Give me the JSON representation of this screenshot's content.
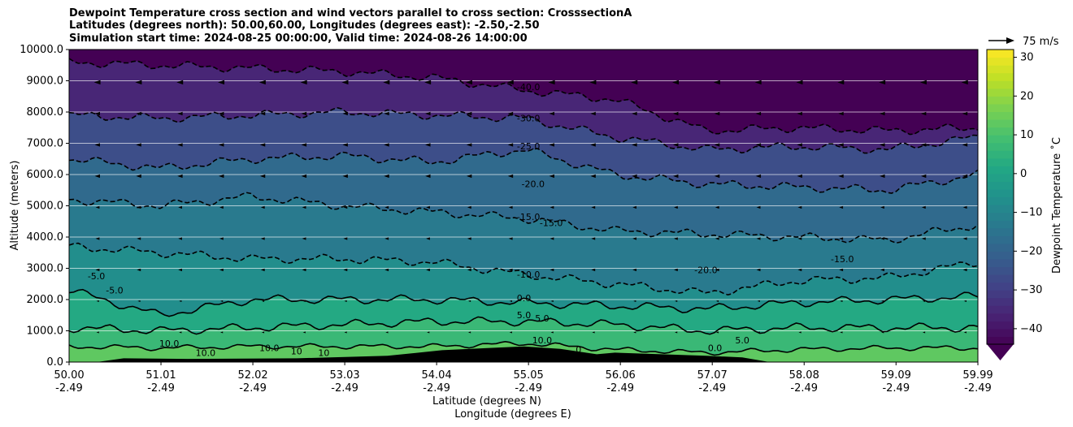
{
  "chart_data": {
    "type": "heatmap",
    "title_lines": [
      "Dewpoint Temperature cross section and wind vectors parallel to cross section: CrosssectionA",
      "Latitudes (degrees north): 50.00,60.00, Longitudes (degrees east): -2.50,-2.50",
      "Simulation start time: 2024-08-25 00:00:00, Valid time: 2024-08-26 14:00:00"
    ],
    "xlabel_lat": "Latitude (degrees N)",
    "xlabel_lon": "Longitude (degrees E)",
    "ylabel": "Altitude (meters)",
    "xlim": [
      50.0,
      59.99
    ],
    "ylim": [
      0,
      10000
    ],
    "grid": "horizontal",
    "x_ticks": [
      {
        "lat": "50.00",
        "lon": "-2.49"
      },
      {
        "lat": "51.01",
        "lon": "-2.49"
      },
      {
        "lat": "52.02",
        "lon": "-2.49"
      },
      {
        "lat": "53.03",
        "lon": "-2.49"
      },
      {
        "lat": "54.04",
        "lon": "-2.49"
      },
      {
        "lat": "55.05",
        "lon": "-2.49"
      },
      {
        "lat": "56.06",
        "lon": "-2.49"
      },
      {
        "lat": "57.07",
        "lon": "-2.49"
      },
      {
        "lat": "58.08",
        "lon": "-2.49"
      },
      {
        "lat": "59.09",
        "lon": "-2.49"
      },
      {
        "lat": "59.99",
        "lon": "-2.49"
      }
    ],
    "y_ticks": [
      "0.0",
      "1000.0",
      "2000.0",
      "3000.0",
      "4000.0",
      "5000.0",
      "6000.0",
      "7000.0",
      "8000.0",
      "9000.0",
      "10000.0"
    ],
    "colorbar": {
      "label": "Dewpoint Temperature ˚C",
      "range": [
        -44,
        32
      ],
      "ticks": [
        "30",
        "20",
        "10",
        "0",
        "−10",
        "−20",
        "−30",
        "−40"
      ],
      "extend": "min",
      "colormap": "viridis"
    },
    "quiver_key": {
      "label": "75 m/s"
    },
    "contour_labels": [
      {
        "text": "-40.0",
        "lat": 55.05,
        "alt": 8700
      },
      {
        "text": "-30.0",
        "lat": 55.05,
        "alt": 7700
      },
      {
        "text": "-25.0",
        "lat": 55.05,
        "alt": 6800
      },
      {
        "text": "-20.0",
        "lat": 55.1,
        "alt": 5600
      },
      {
        "text": "-15.0",
        "lat": 55.05,
        "alt": 4550
      },
      {
        "text": "-15.0",
        "lat": 55.3,
        "alt": 4350
      },
      {
        "text": "-15.0",
        "lat": 58.5,
        "alt": 3200
      },
      {
        "text": "-20.0",
        "lat": 57.0,
        "alt": 2850
      },
      {
        "text": "-10.0",
        "lat": 55.05,
        "alt": 2700
      },
      {
        "text": "-5.0",
        "lat": 50.3,
        "alt": 2650
      },
      {
        "text": "-5.0",
        "lat": 50.5,
        "alt": 2200
      },
      {
        "text": "0.0",
        "lat": 55.0,
        "alt": 1950
      },
      {
        "text": "5.0",
        "lat": 55.0,
        "alt": 1400
      },
      {
        "text": "5.0",
        "lat": 55.2,
        "alt": 1300
      },
      {
        "text": "5.0",
        "lat": 57.4,
        "alt": 600
      },
      {
        "text": "10.0",
        "lat": 51.1,
        "alt": 500
      },
      {
        "text": "10.0",
        "lat": 51.5,
        "alt": 200
      },
      {
        "text": "10.0",
        "lat": 52.2,
        "alt": 350
      },
      {
        "text": "10",
        "lat": 52.5,
        "alt": 250
      },
      {
        "text": "10",
        "lat": 52.8,
        "alt": 200
      },
      {
        "text": "10.0",
        "lat": 55.2,
        "alt": 600
      },
      {
        "text": "0",
        "lat": 55.6,
        "alt": 300
      },
      {
        "text": "0.0",
        "lat": 57.1,
        "alt": 350
      }
    ],
    "levels_profile": [
      {
        "lat": 50.0,
        "alts": [
          500,
          1100,
          2300,
          3700,
          5200,
          6500,
          7900,
          9600
        ]
      },
      {
        "lat": 51.0,
        "alts": [
          450,
          1000,
          1500,
          3500,
          5000,
          6200,
          7800,
          9500
        ]
      },
      {
        "lat": 52.0,
        "alts": [
          500,
          1100,
          2000,
          3300,
          5300,
          6500,
          7900,
          9400
        ]
      },
      {
        "lat": 53.0,
        "alts": [
          500,
          1200,
          2000,
          3300,
          5000,
          6600,
          8000,
          9300
        ]
      },
      {
        "lat": 54.0,
        "alts": [
          500,
          1300,
          2000,
          3200,
          4800,
          6400,
          7900,
          9100
        ]
      },
      {
        "lat": 55.0,
        "alts": [
          600,
          1300,
          1900,
          2800,
          4600,
          6800,
          7800,
          8700
        ]
      },
      {
        "lat": 56.0,
        "alts": [
          400,
          1200,
          1800,
          2500,
          4200,
          6000,
          7200,
          8400
        ]
      },
      {
        "lat": 57.0,
        "alts": [
          300,
          1000,
          1700,
          2200,
          4100,
          5700,
          6800,
          7400
        ]
      },
      {
        "lat": 58.0,
        "alts": [
          400,
          1100,
          1900,
          2600,
          4000,
          5600,
          6900,
          7500
        ]
      },
      {
        "lat": 59.0,
        "alts": [
          450,
          1100,
          2000,
          2700,
          3900,
          5500,
          6800,
          7400
        ]
      },
      {
        "lat": 59.99,
        "alts": [
          450,
          1100,
          2100,
          3200,
          4400,
          6000,
          7200,
          7500
        ]
      }
    ],
    "levels_values": [
      10,
      5,
      0,
      -10,
      -15,
      -20,
      -30,
      -40
    ],
    "surface_temps": [
      13,
      7,
      2,
      -7,
      -13,
      -18,
      -26,
      -36,
      -44
    ],
    "terrain": [
      {
        "lat": 50.6,
        "alt": 120
      },
      {
        "lat": 51.3,
        "alt": 100
      },
      {
        "lat": 52.5,
        "alt": 120
      },
      {
        "lat": 53.5,
        "alt": 200
      },
      {
        "lat": 54.1,
        "alt": 380
      },
      {
        "lat": 54.6,
        "alt": 450
      },
      {
        "lat": 55.0,
        "alt": 500
      },
      {
        "lat": 55.4,
        "alt": 420
      },
      {
        "lat": 55.8,
        "alt": 250
      },
      {
        "lat": 56.0,
        "alt": 300
      },
      {
        "lat": 57.0,
        "alt": 200
      },
      {
        "lat": 57.4,
        "alt": 150
      }
    ]
  },
  "colors": {
    "viridis": [
      "#440154",
      "#482475",
      "#414487",
      "#355f8d",
      "#2a788e",
      "#21918c",
      "#22a884",
      "#44bf70",
      "#7ad151",
      "#bddf26",
      "#fde725"
    ],
    "contour": "#000000",
    "grid": "#ffffff",
    "terrain": "#000000"
  }
}
